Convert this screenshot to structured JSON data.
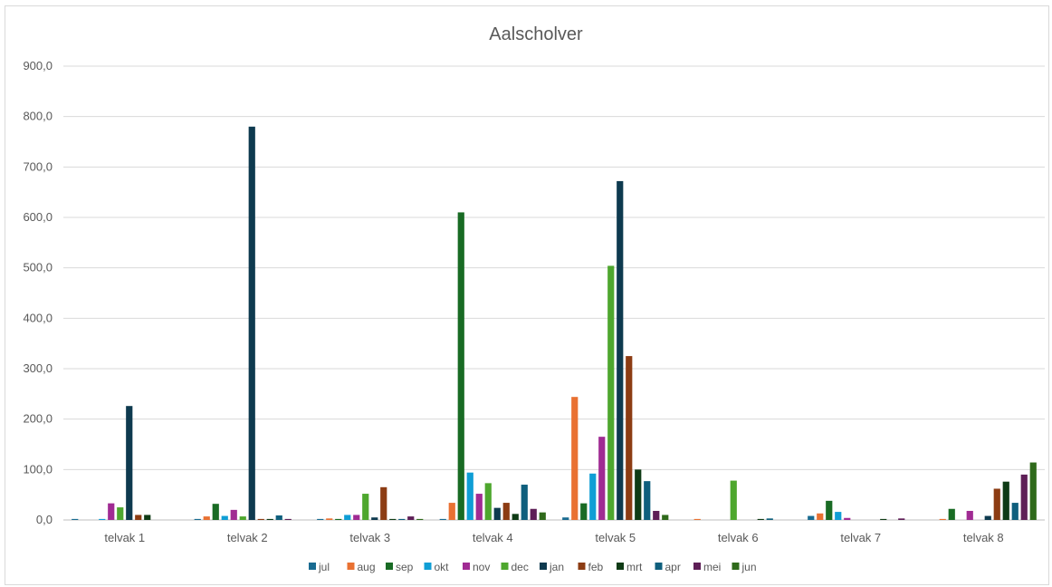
{
  "chart_data": {
    "type": "bar",
    "title": "Aalscholver",
    "xlabel": "",
    "ylabel": "",
    "ylim": [
      0,
      900
    ],
    "yticks": [
      "0,0",
      "100,0",
      "200,0",
      "300,0",
      "400,0",
      "500,0",
      "600,0",
      "700,0",
      "800,0",
      "900,0"
    ],
    "grid": true,
    "legend": "bottom",
    "categories": [
      "telvak 1",
      "telvak 2",
      "telvak 3",
      "telvak 4",
      "telvak 5",
      "telvak 6",
      "telvak 7",
      "telvak 8"
    ],
    "series": [
      {
        "name": "jul",
        "color": "#196b91",
        "values": [
          2,
          2,
          2,
          2,
          5,
          0,
          8,
          0
        ]
      },
      {
        "name": "aug",
        "color": "#e97132",
        "values": [
          0,
          7,
          3,
          34,
          244,
          2,
          13,
          2
        ]
      },
      {
        "name": "sep",
        "color": "#196b24",
        "values": [
          0,
          32,
          2,
          610,
          33,
          0,
          38,
          22
        ]
      },
      {
        "name": "okt",
        "color": "#0f9ed5",
        "values": [
          2,
          8,
          10,
          94,
          92,
          0,
          16,
          0
        ]
      },
      {
        "name": "nov",
        "color": "#a02b93",
        "values": [
          33,
          20,
          10,
          52,
          165,
          0,
          4,
          18
        ]
      },
      {
        "name": "dec",
        "color": "#4ea72e",
        "values": [
          25,
          7,
          52,
          73,
          504,
          78,
          0,
          0
        ]
      },
      {
        "name": "jan",
        "color": "#0e3a4f",
        "values": [
          226,
          780,
          5,
          24,
          672,
          0,
          0,
          8
        ]
      },
      {
        "name": "feb",
        "color": "#8c3c13",
        "values": [
          10,
          2,
          65,
          34,
          325,
          0,
          0,
          62
        ]
      },
      {
        "name": "mrt",
        "color": "#0f3b15",
        "values": [
          10,
          2,
          2,
          12,
          100,
          2,
          2,
          76
        ]
      },
      {
        "name": "apr",
        "color": "#0f5f7d",
        "values": [
          0,
          9,
          2,
          70,
          77,
          3,
          0,
          34
        ]
      },
      {
        "name": "mei",
        "color": "#5e1f57",
        "values": [
          0,
          2,
          7,
          22,
          18,
          0,
          3,
          90
        ]
      },
      {
        "name": "jun",
        "color": "#2f6a1b",
        "values": [
          0,
          0,
          2,
          15,
          10,
          0,
          0,
          114
        ]
      }
    ]
  }
}
